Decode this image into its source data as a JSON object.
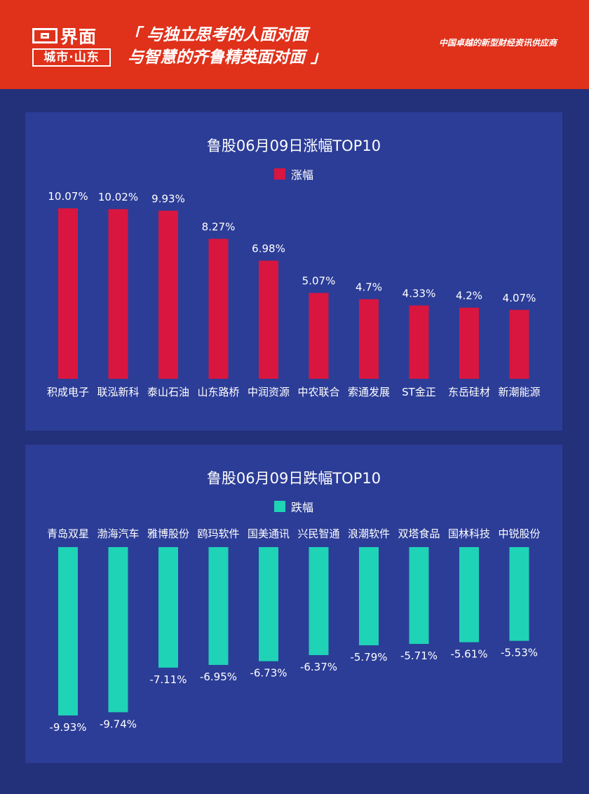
{
  "header": {
    "logo_name": "界面",
    "logo_city": "城市·山东",
    "slogan_line1": "「 与独立思考的人面对面",
    "slogan_line2": "与智慧的齐鲁精英面对面 」",
    "tagline": "中国卓越的新型财经资讯供应商"
  },
  "colors": {
    "header_bg": "#e0311b",
    "page_bg": "#23307a",
    "panel_bg": "#2c3d97",
    "gain_bar": "#d9163f",
    "loss_bar": "#1fd3b6"
  },
  "chart_data": [
    {
      "type": "bar",
      "title": "鲁股06月09日涨幅TOP10",
      "legend": "涨幅",
      "categories": [
        "积成电子",
        "联泓新科",
        "泰山石油",
        "山东路桥",
        "中润资源",
        "中农联合",
        "索通发展",
        "ST金正",
        "东岳硅材",
        "新潮能源"
      ],
      "values": [
        10.07,
        10.02,
        9.93,
        8.27,
        6.98,
        5.07,
        4.7,
        4.33,
        4.2,
        4.07
      ],
      "labels": [
        "10.07%",
        "10.02%",
        "9.93%",
        "8.27%",
        "6.98%",
        "5.07%",
        "4.7%",
        "4.33%",
        "4.2%",
        "4.07%"
      ],
      "ylim": [
        0,
        10.07
      ]
    },
    {
      "type": "bar",
      "title": "鲁股06月09日跌幅TOP10",
      "legend": "跌幅",
      "categories": [
        "青岛双星",
        "渤海汽车",
        "雅博股份",
        "鸥玛软件",
        "国美通讯",
        "兴民智通",
        "浪潮软件",
        "双塔食品",
        "国林科技",
        "中锐股份"
      ],
      "values": [
        -9.93,
        -9.74,
        -7.11,
        -6.95,
        -6.73,
        -6.37,
        -5.79,
        -5.71,
        -5.61,
        -5.53
      ],
      "labels": [
        "-9.93%",
        "-9.74%",
        "-7.11%",
        "-6.95%",
        "-6.73%",
        "-6.37%",
        "-5.79%",
        "-5.71%",
        "-5.61%",
        "-5.53%"
      ],
      "ylim": [
        -9.93,
        0
      ]
    }
  ]
}
